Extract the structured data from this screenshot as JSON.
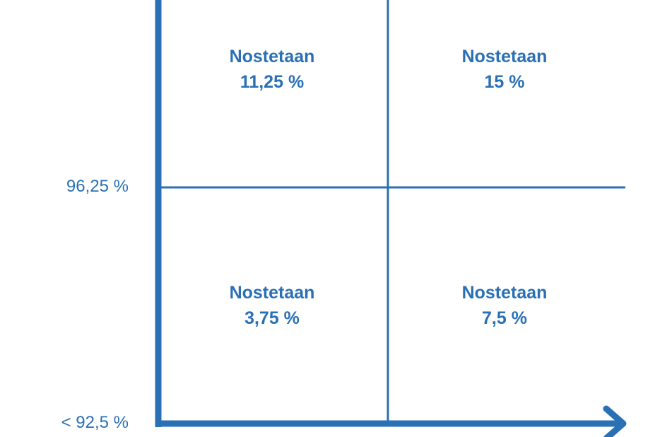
{
  "colors": {
    "accent": "#2a70b5"
  },
  "quadrants": {
    "top_left": {
      "line1": "Nostetaan",
      "line2": "11,25 %"
    },
    "top_right": {
      "line1": "Nostetaan",
      "line2": "15 %"
    },
    "bottom_left": {
      "line1": "Nostetaan",
      "line2": "3,75 %"
    },
    "bottom_right": {
      "line1": "Nostetaan",
      "line2": "7,5 %"
    }
  },
  "y_axis": {
    "mid_label": "96,25 %",
    "low_label": "< 92,5 %"
  }
}
